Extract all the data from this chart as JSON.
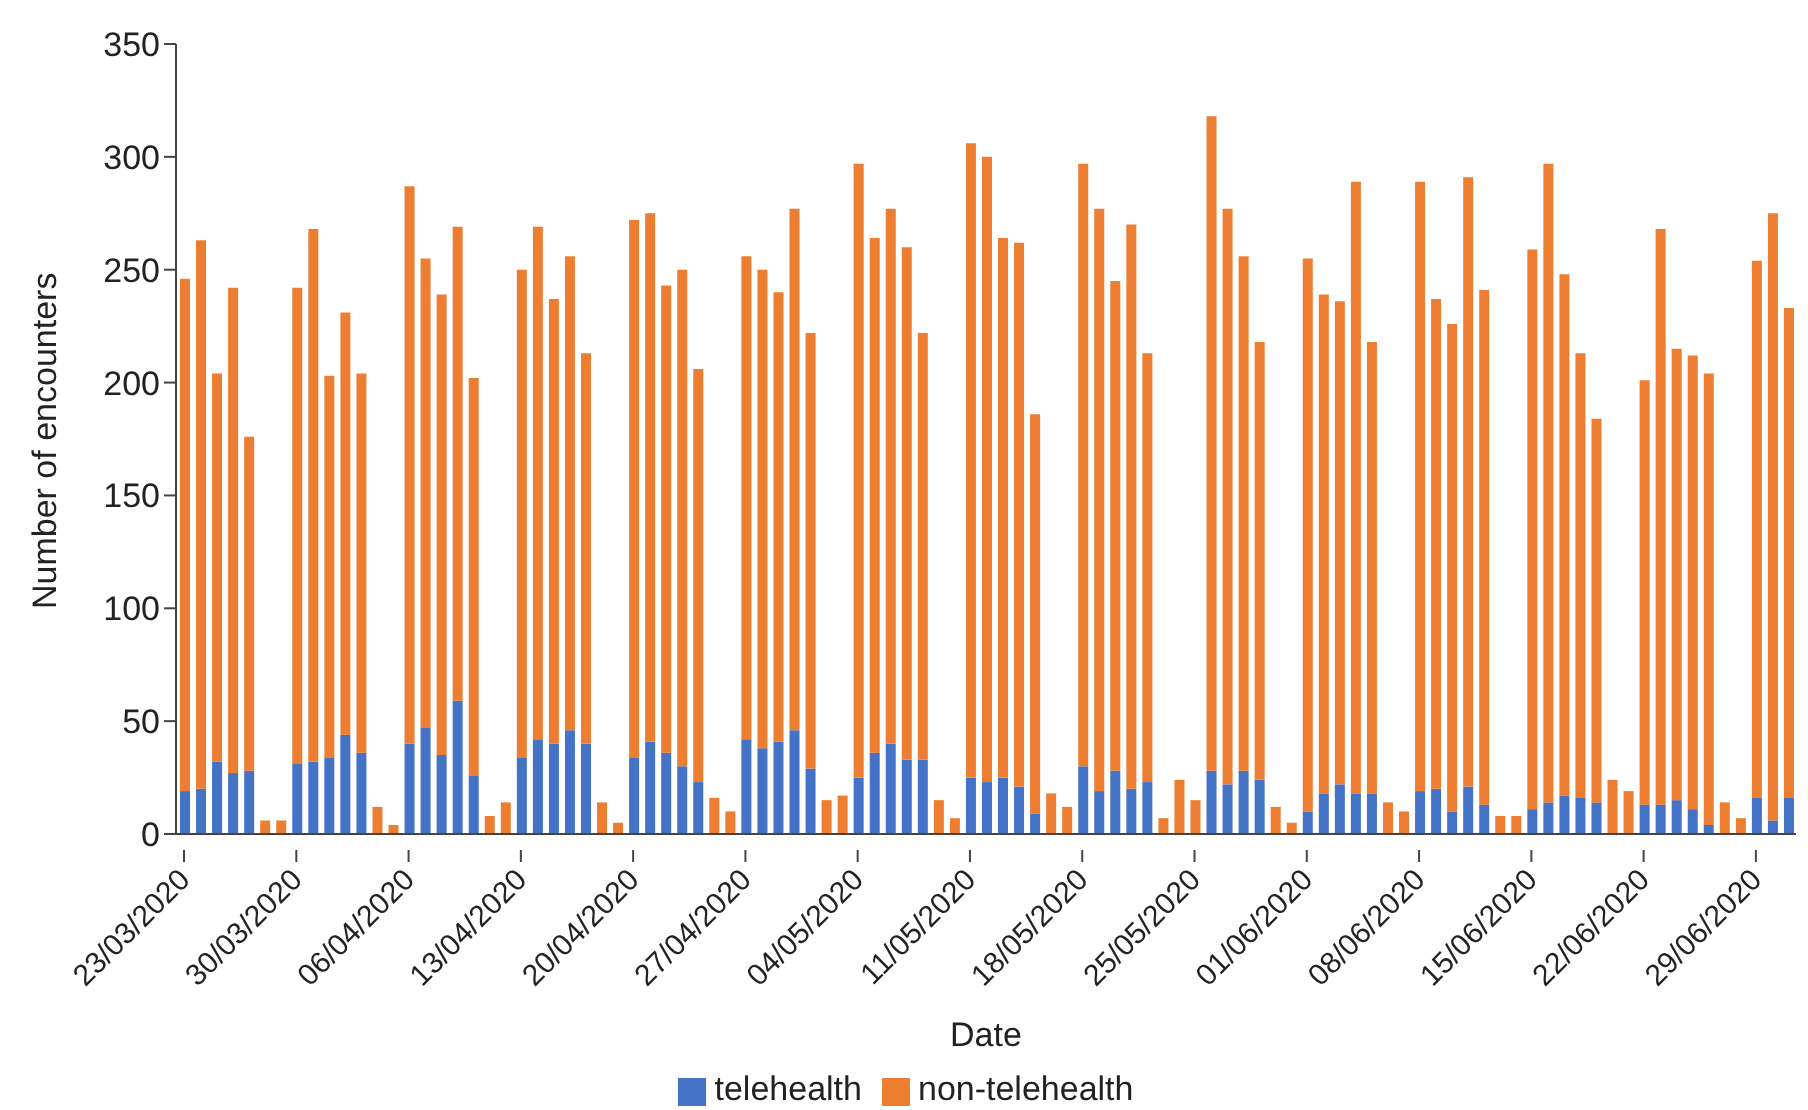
{
  "chart_data": {
    "type": "bar",
    "stacked": true,
    "xlabel": "Date",
    "ylabel": "Number of encounters",
    "categories": [
      "23/03/2020",
      null,
      null,
      null,
      null,
      null,
      null,
      "30/03/2020",
      null,
      null,
      null,
      null,
      null,
      null,
      "06/04/2020",
      null,
      null,
      null,
      null,
      null,
      null,
      "13/04/2020",
      null,
      null,
      null,
      null,
      null,
      null,
      "20/04/2020",
      null,
      null,
      null,
      null,
      null,
      null,
      "27/04/2020",
      null,
      null,
      null,
      null,
      null,
      null,
      "04/05/2020",
      null,
      null,
      null,
      null,
      null,
      null,
      "11/05/2020",
      null,
      null,
      null,
      null,
      null,
      null,
      "18/05/2020",
      null,
      null,
      null,
      null,
      null,
      null,
      "25/05/2020",
      null,
      null,
      null,
      null,
      null,
      null,
      "01/06/2020",
      null,
      null,
      null,
      null,
      null,
      null,
      "08/06/2020",
      null,
      null,
      null,
      null,
      null,
      null,
      "15/06/2020",
      null,
      null,
      null,
      null,
      null,
      null,
      "22/06/2020",
      null,
      null,
      null,
      null,
      null,
      null,
      "29/06/2020",
      null,
      null
    ],
    "series": [
      {
        "name": "telehealth",
        "color": "#4472c4",
        "values": [
          19,
          20,
          32,
          27,
          28,
          0,
          0,
          31,
          32,
          34,
          44,
          36,
          0,
          0,
          40,
          47,
          35,
          59,
          26,
          0,
          0,
          34,
          42,
          40,
          46,
          40,
          0,
          0,
          34,
          41,
          36,
          30,
          23,
          0,
          0,
          42,
          38,
          41,
          46,
          29,
          0,
          0,
          25,
          36,
          40,
          33,
          33,
          0,
          0,
          25,
          23,
          25,
          21,
          9,
          0,
          0,
          30,
          19,
          28,
          20,
          23,
          0,
          0,
          0,
          28,
          22,
          28,
          24,
          0,
          0,
          10,
          18,
          22,
          18,
          18,
          0,
          0,
          19,
          20,
          10,
          21,
          13,
          0,
          0,
          11,
          14,
          17,
          16,
          14,
          0,
          0,
          13,
          13,
          15,
          11,
          4,
          0,
          0,
          16,
          6,
          16
        ]
      },
      {
        "name": "non-telehealth",
        "color": "#ed7d31",
        "values": [
          227,
          243,
          172,
          215,
          148,
          6,
          6,
          211,
          236,
          169,
          187,
          168,
          12,
          4,
          247,
          208,
          204,
          210,
          176,
          8,
          14,
          216,
          227,
          197,
          210,
          173,
          14,
          5,
          238,
          234,
          207,
          220,
          183,
          16,
          10,
          214,
          212,
          199,
          231,
          193,
          15,
          17,
          272,
          228,
          237,
          227,
          189,
          15,
          7,
          281,
          277,
          239,
          241,
          177,
          18,
          12,
          267,
          258,
          217,
          250,
          190,
          7,
          24,
          15,
          290,
          255,
          228,
          194,
          12,
          5,
          245,
          221,
          214,
          271,
          200,
          14,
          10,
          270,
          217,
          216,
          270,
          228,
          8,
          8,
          248,
          283,
          231,
          197,
          170,
          24,
          19,
          188,
          255,
          200,
          201,
          200,
          14,
          7,
          238,
          269,
          217
        ]
      }
    ],
    "ylim": [
      0,
      350
    ],
    "yticks": [
      0,
      50,
      100,
      150,
      200,
      250,
      300,
      350
    ],
    "grid": false,
    "legend": "bottom"
  }
}
